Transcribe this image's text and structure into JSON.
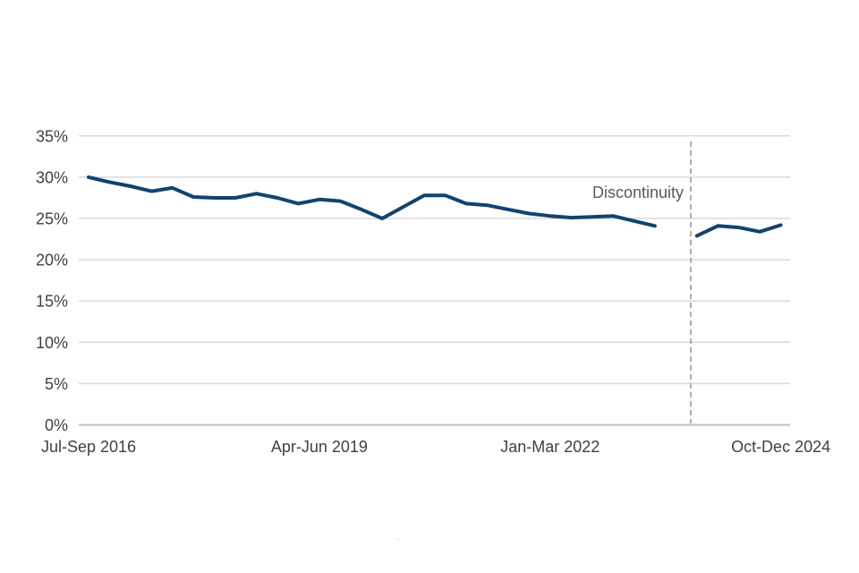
{
  "chart_data": {
    "type": "line",
    "title": "",
    "xlabel": "",
    "ylabel": "",
    "ylim": [
      0,
      35
    ],
    "ytick_step": 5,
    "ytick_labels": [
      "0%",
      "5%",
      "10%",
      "15%",
      "20%",
      "25%",
      "30%",
      "35%"
    ],
    "grid": "horizontal-only",
    "x_total_points": 34,
    "x_unit": "quarter",
    "xticks": [
      {
        "index": 0,
        "label": "Jul-Sep 2016"
      },
      {
        "index": 11,
        "label": "Apr-Jun 2019"
      },
      {
        "index": 22,
        "label": "Jan-Mar 2022"
      },
      {
        "index": 33,
        "label": "Oct-Dec 2024"
      }
    ],
    "series": [
      {
        "name": "pre-discontinuity",
        "start_index": 0,
        "values": [
          30.0,
          29.4,
          28.9,
          28.3,
          28.7,
          27.6,
          27.5,
          27.5,
          28.0,
          27.5,
          26.8,
          27.3,
          27.1,
          26.1,
          25.0,
          26.4,
          27.8,
          27.8,
          26.8,
          26.6,
          26.1,
          25.6,
          25.3,
          25.1,
          25.2,
          25.3,
          24.7,
          24.1
        ]
      },
      {
        "name": "post-discontinuity",
        "start_index": 29,
        "values": [
          22.9,
          24.1,
          23.9,
          23.4,
          24.2
        ]
      }
    ],
    "discontinuity": {
      "label": "Discontinuity",
      "gap_index": 28,
      "dashed_line_between_indices": [
        28,
        29
      ]
    },
    "colors": {
      "line": "#12436D",
      "gridline": "#D9D9D9",
      "axis_line": "#BFBFBF",
      "tick_label": "#404040",
      "annotation_label": "#595959",
      "dashed_line": "#A6A6A6"
    },
    "footnote_marks": "· ·"
  }
}
